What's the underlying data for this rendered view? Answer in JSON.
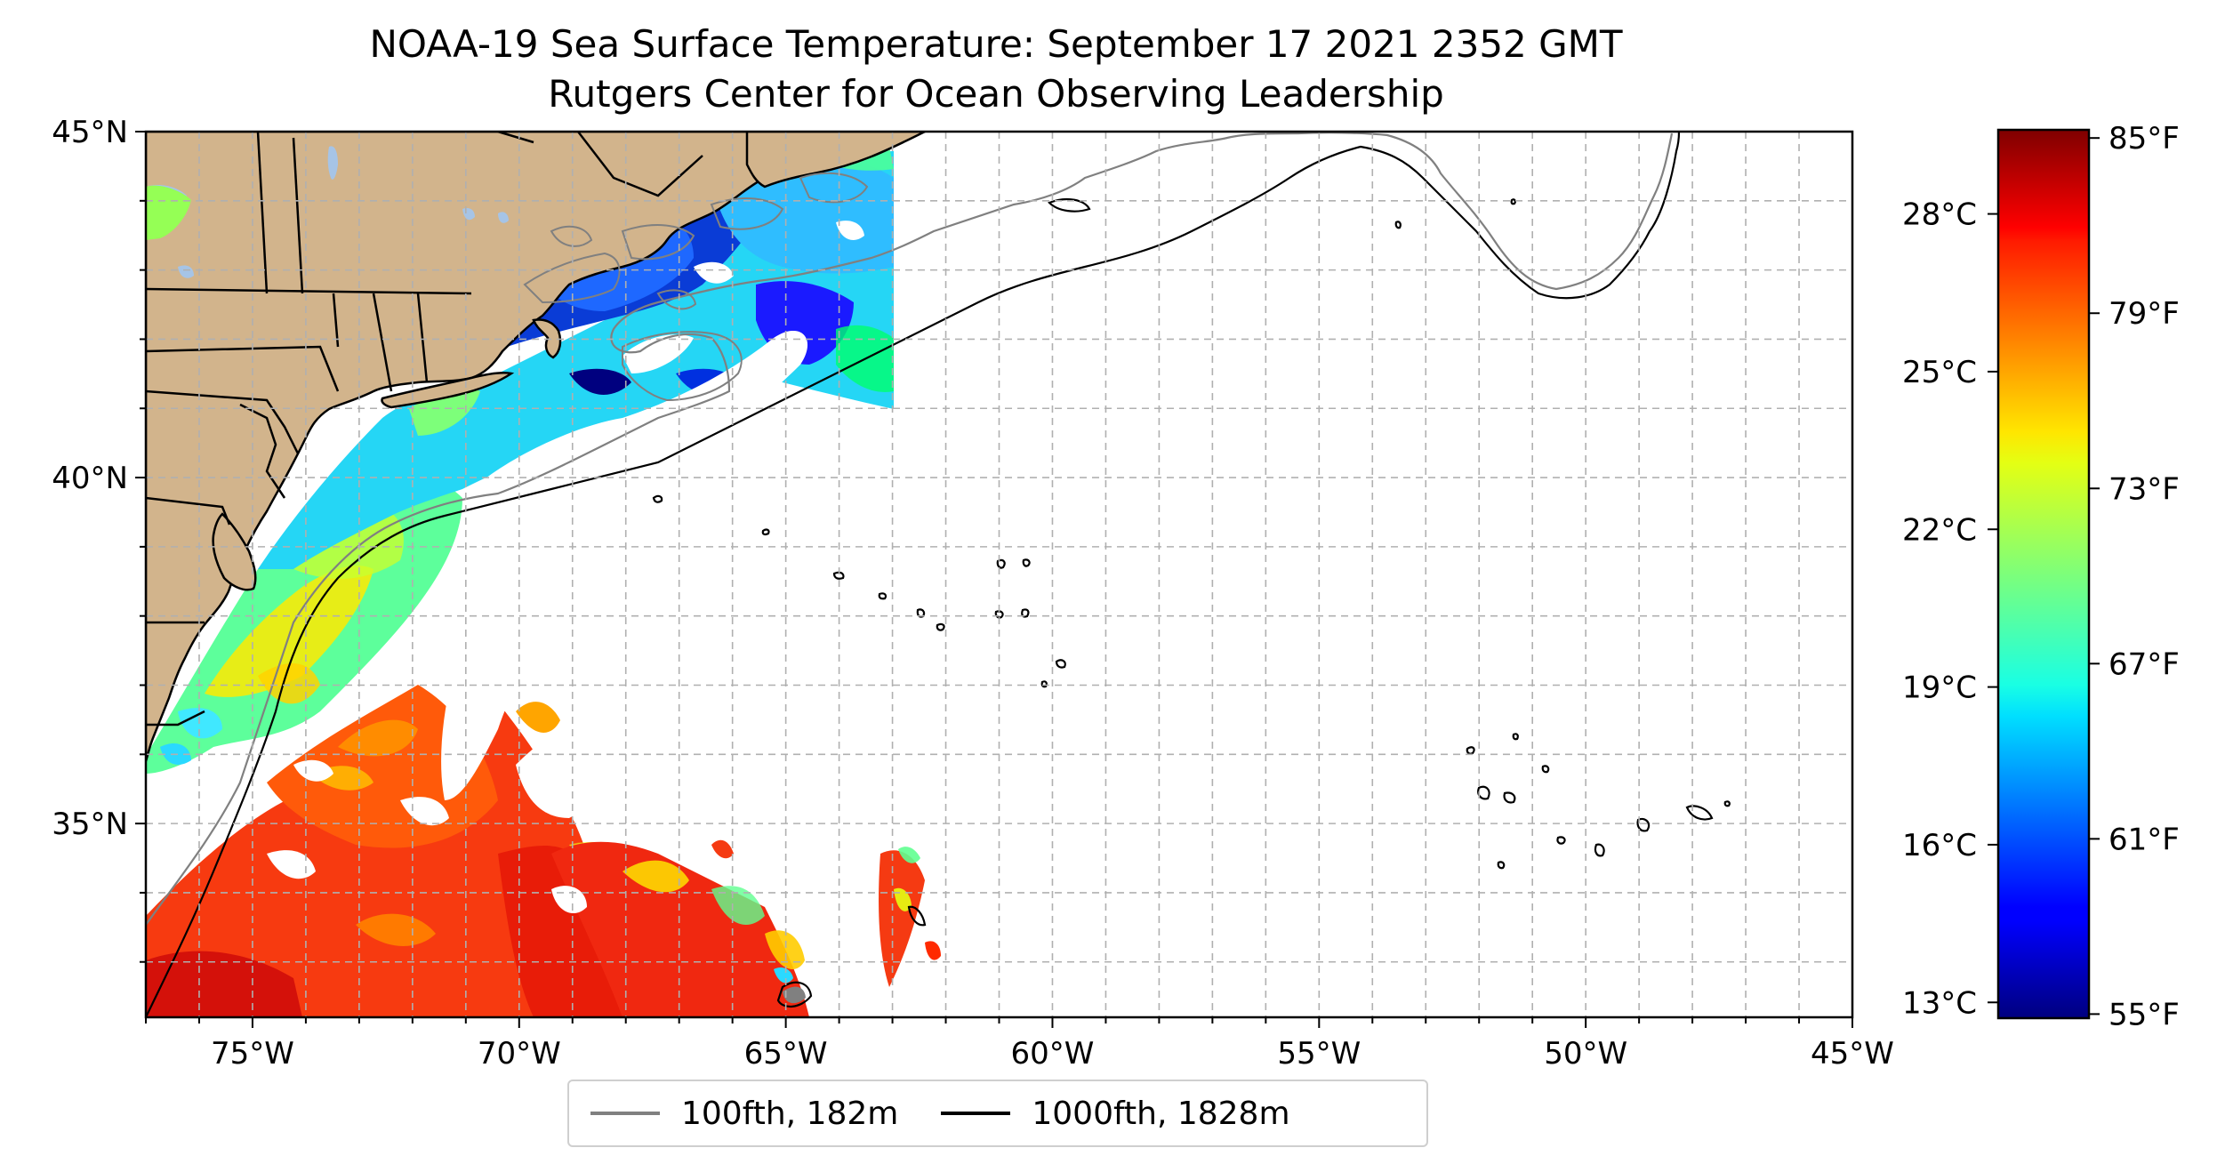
{
  "title": "NOAA-19 Sea Surface Temperature: September 17 2021 2352 GMT",
  "subtitle": "Rutgers Center for Ocean Observing Leadership",
  "map": {
    "lon_range": [
      -77,
      -45
    ],
    "lat_range": [
      32.2,
      45
    ],
    "lon_ticks": [
      {
        "value": -75,
        "label": "75°W"
      },
      {
        "value": -70,
        "label": "70°W"
      },
      {
        "value": -65,
        "label": "65°W"
      },
      {
        "value": -60,
        "label": "60°W"
      },
      {
        "value": -55,
        "label": "55°W"
      },
      {
        "value": -50,
        "label": "50°W"
      },
      {
        "value": -45,
        "label": "45°W"
      }
    ],
    "lat_ticks": [
      {
        "value": 45,
        "label": "45°N"
      },
      {
        "value": 40,
        "label": "40°N"
      },
      {
        "value": 35,
        "label": "35°N"
      }
    ],
    "grid": true,
    "land_color": "#d2b48c",
    "lake_color": "#a6c4e6"
  },
  "colorbar": {
    "range_c": [
      12.7,
      29.6
    ],
    "celsius_ticks": [
      {
        "value": 13,
        "label": "13°C"
      },
      {
        "value": 16,
        "label": "16°C"
      },
      {
        "value": 19,
        "label": "19°C"
      },
      {
        "value": 22,
        "label": "22°C"
      },
      {
        "value": 25,
        "label": "25°C"
      },
      {
        "value": 28,
        "label": "28°C"
      }
    ],
    "fahrenheit_ticks": [
      {
        "value": 55,
        "label": "55°F"
      },
      {
        "value": 61,
        "label": "61°F"
      },
      {
        "value": 67,
        "label": "67°F"
      },
      {
        "value": 73,
        "label": "73°F"
      },
      {
        "value": 79,
        "label": "79°F"
      },
      {
        "value": 85,
        "label": "85°F"
      }
    ],
    "colormap": "jet"
  },
  "legend": {
    "items": [
      {
        "label": "100fth, 182m",
        "color": "#808080"
      },
      {
        "label": "1000fth, 1828m",
        "color": "#000000"
      }
    ],
    "placement": "bottom-center"
  }
}
